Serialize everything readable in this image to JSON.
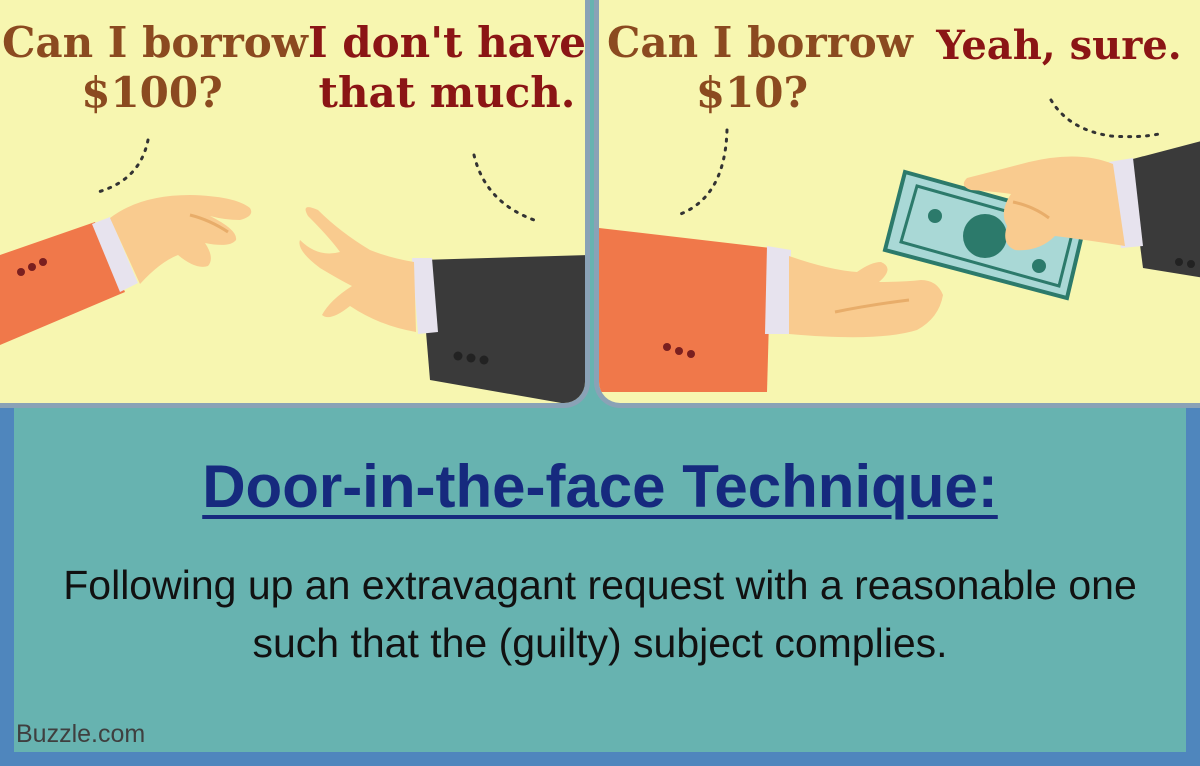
{
  "left_panel": {
    "request": [
      "Can I borrow",
      "$100?"
    ],
    "response": [
      "I don't have",
      "that much."
    ]
  },
  "right_panel": {
    "request": [
      "Can I borrow",
      "$10?"
    ],
    "response": [
      "Yeah, sure."
    ]
  },
  "caption": {
    "title": "Door-in-the-face Technique:",
    "description": "Following up an extravagant request with a reasonable one such that the (guilty) subject complies."
  },
  "brand": "Buzzle.com",
  "colors": {
    "panel_bg": "#f7f6b0",
    "bottom_bg": "#67b3b0",
    "frame": "#4f86bd",
    "title": "#162a7e",
    "request_text": "#8b4a20",
    "response_text": "#8b1515",
    "orange_sleeve": "#f0784a",
    "dark_sleeve": "#3a3a3a",
    "skin": "#f9cb8f",
    "banknote": "#a9d8d6",
    "banknote_dark": "#2c7a6b"
  }
}
